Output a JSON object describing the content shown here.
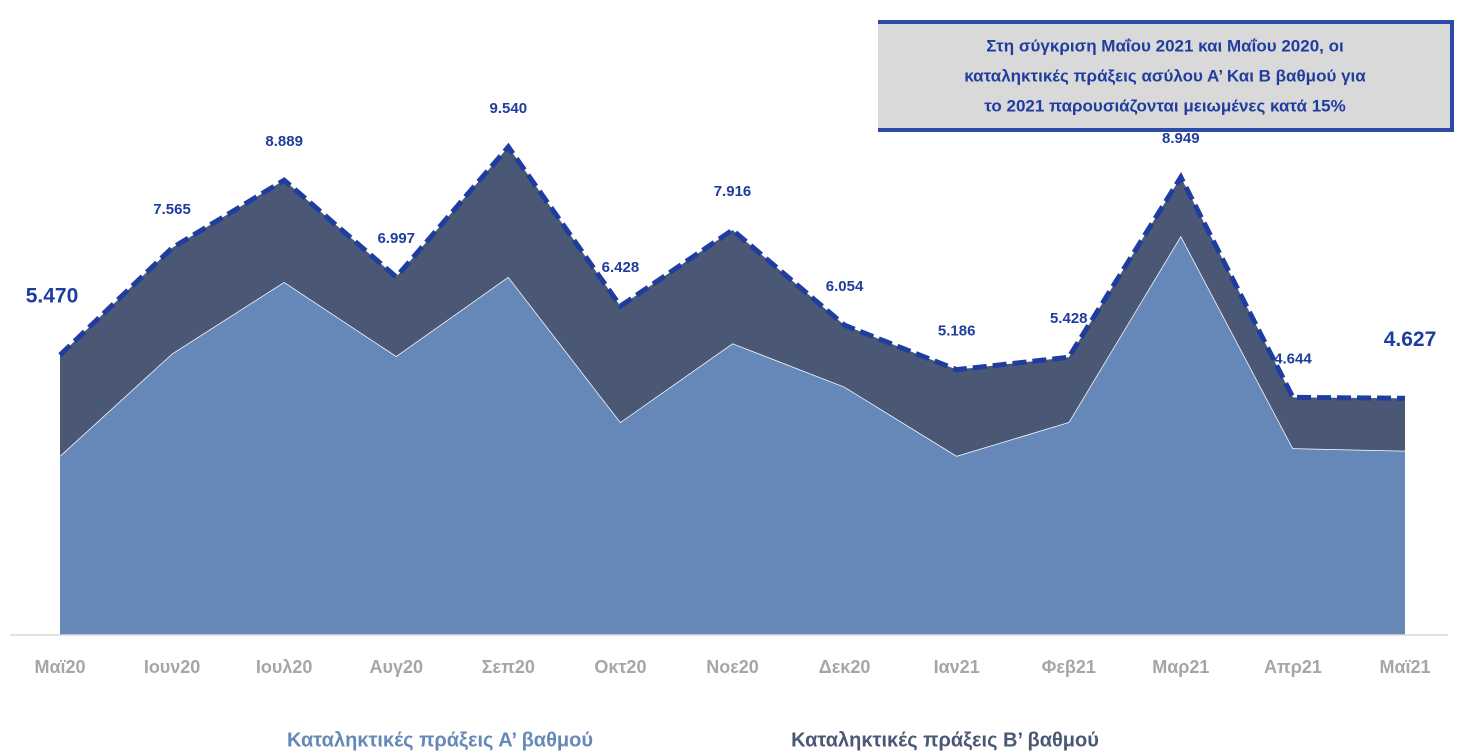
{
  "chart_data": {
    "type": "stacked_area",
    "categories": [
      "Μαϊ20",
      "Ιουν20",
      "Ιουλ20",
      "Αυγ20",
      "Σεπ20",
      "Οκτ20",
      "Νοε20",
      "Δεκ20",
      "Ιαν21",
      "Φεβ21",
      "Μαρ21",
      "Απρ21",
      "Μαϊ21"
    ],
    "series": [
      {
        "name": "Καταληκτικές πράξεις Α’ βαθμού",
        "color": "#6688b8",
        "values": [
          3500,
          5500,
          6900,
          5450,
          7000,
          4160,
          5700,
          4850,
          3500,
          4160,
          7800,
          3650,
          3600
        ]
      },
      {
        "name": "Καταληκτικές πράξεις Β’ βαθμού",
        "color": "#4a5775",
        "values": [
          1970,
          2065,
          1989,
          1547,
          2540,
          2268,
          2216,
          1204,
          1686,
          1268,
          1149,
          994,
          1027
        ]
      }
    ],
    "totals": {
      "color": "#1f3d9e",
      "values": [
        5470,
        7565,
        8889,
        6997,
        9540,
        6428,
        7916,
        6054,
        5186,
        5428,
        8949,
        4644,
        4627
      ],
      "value_labels": [
        "5.470",
        "7.565",
        "8.889",
        "6.997",
        "9.540",
        "6.428",
        "7.916",
        "6.054",
        "5.186",
        "5.428",
        "8.949",
        "4.644",
        "4.627"
      ]
    },
    "annotation": [
      "Στη σύγκριση Μαΐου 2021 και Μαΐου 2020, οι",
      "καταληκτικές πράξεις ασύλου Α’ Και Β βαθμού για",
      "το 2021 παρουσιάζονται μειωμένες κατά 15%"
    ],
    "ylim": [
      0,
      12000
    ]
  }
}
